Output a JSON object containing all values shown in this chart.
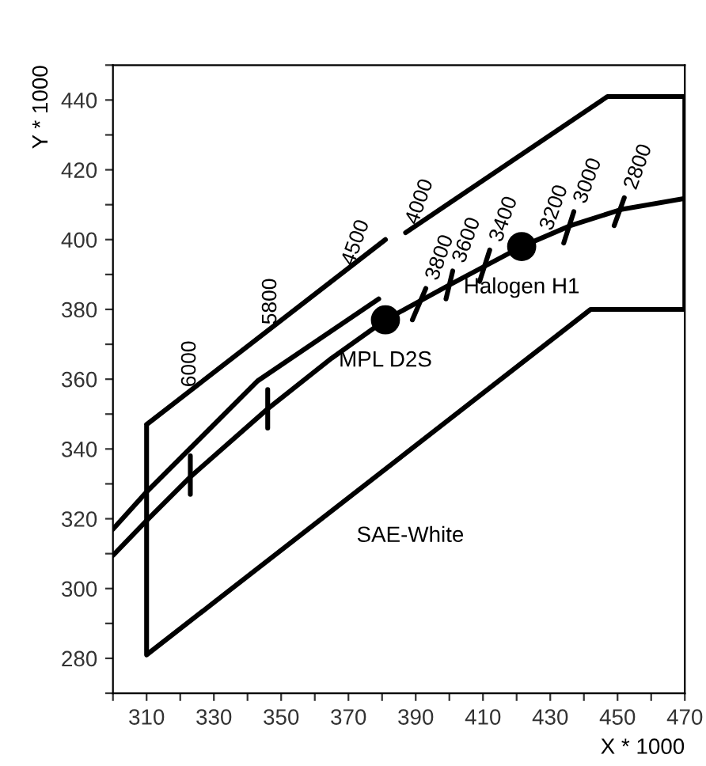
{
  "chart_data": {
    "type": "line",
    "xlabel": "X * 1000",
    "ylabel": "Y * 1000",
    "xlim": [
      300,
      470
    ],
    "ylim": [
      270,
      450
    ],
    "xticks": [
      {
        "value": 300,
        "label": null
      },
      310,
      {
        "value": 320,
        "label": null
      },
      330,
      {
        "value": 340,
        "label": null
      },
      350,
      {
        "value": 360,
        "label": null
      },
      370,
      {
        "value": 380,
        "label": null
      },
      390,
      {
        "value": 400,
        "label": null
      },
      410,
      {
        "value": 420,
        "label": null
      },
      430,
      {
        "value": 440,
        "label": null
      },
      450,
      {
        "value": 460,
        "label": null
      },
      470
    ],
    "yticks": [
      {
        "value": 270,
        "label": null
      },
      280,
      {
        "value": 290,
        "label": null
      },
      300,
      {
        "value": 310,
        "label": null
      },
      320,
      {
        "value": 330,
        "label": null
      },
      340,
      {
        "value": 350,
        "label": null
      },
      360,
      {
        "value": 370,
        "label": null
      },
      380,
      {
        "value": 390,
        "label": null
      },
      400,
      {
        "value": 410,
        "label": null
      },
      420,
      {
        "value": 430,
        "label": null
      },
      440,
      {
        "value": 450,
        "label": null
      }
    ],
    "grid": false,
    "legend": false,
    "line_style": "solid",
    "marker": "none",
    "series": [
      {
        "color": "#000000",
        "x": [
          310,
          381,
          null,
          387,
          447,
          470,
          470,
          442,
          310,
          310
        ],
        "values": [
          347,
          400,
          null,
          402,
          441,
          441,
          380,
          380,
          281,
          347
        ]
      },
      {
        "color": "#000000",
        "x": [
          300,
          310,
          343,
          379
        ],
        "values": [
          317,
          327.7,
          359.5,
          383
        ]
      },
      {
        "color": "#000000",
        "x": [
          300,
          310,
          323,
          346,
          365,
          381,
          400,
          421.5,
          436,
          451,
          470
        ],
        "values": [
          309.5,
          319.5,
          332,
          351.5,
          366,
          377,
          387,
          398,
          404,
          408.6,
          411.8
        ]
      },
      {
        "color": "#000000",
        "x": [
          323,
          323,
          null,
          346,
          346,
          null,
          389,
          393,
          null,
          399,
          401,
          null,
          409,
          412,
          null,
          434,
          437,
          null,
          449,
          452
        ],
        "values": [
          327,
          338,
          null,
          346,
          357,
          null,
          377,
          386,
          null,
          383,
          391,
          null,
          388,
          397,
          null,
          399,
          408,
          null,
          404,
          412
        ]
      },
      {
        "type": "scatter",
        "name": "MPL D2S",
        "color": "#000000",
        "marker": "circle",
        "x": [
          381
        ],
        "values": [
          377
        ]
      },
      {
        "type": "scatter",
        "name": "Halogen H1",
        "color": "#000000",
        "marker": "circle",
        "x": [
          421.5
        ],
        "values": [
          398
        ]
      }
    ],
    "annotations": [
      {
        "text": "6000",
        "x": 321,
        "y": 355.2
      },
      {
        "text": "5800",
        "x": 345,
        "y": 373.1
      },
      {
        "text": "4500",
        "x": 368,
        "y": 390.3
      },
      {
        "text": "4000",
        "x": 387,
        "y": 402
      },
      {
        "text": "3800",
        "x": 393,
        "y": 386
      },
      {
        "text": "3600",
        "x": 401,
        "y": 391
      },
      {
        "text": "3400",
        "x": 412,
        "y": 397
      },
      {
        "text": "3200",
        "x": 427,
        "y": 400.3
      },
      {
        "text": "3000",
        "x": 437,
        "y": 408
      },
      {
        "text": "2800",
        "x": 452,
        "y": 412
      },
      "SAE-White"
    ]
  }
}
